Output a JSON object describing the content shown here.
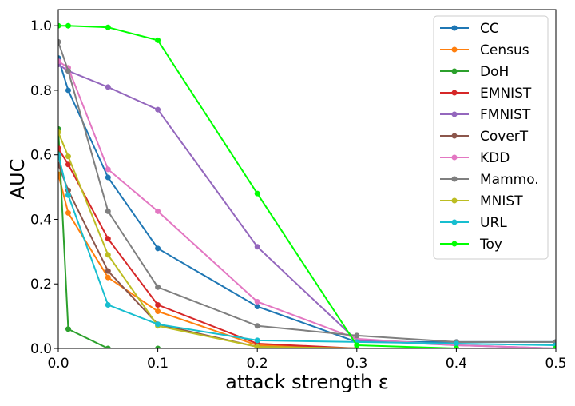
{
  "chart_data": {
    "type": "line",
    "title": "",
    "xlabel": "attack strength ε",
    "ylabel": "AUC",
    "xlim": [
      0.0,
      0.5
    ],
    "ylim": [
      0.0,
      1.05
    ],
    "x_ticks": [
      0.0,
      0.1,
      0.2,
      0.3,
      0.4,
      0.5
    ],
    "x_tick_labels": [
      "0.0",
      "0.1",
      "0.2",
      "0.3",
      "0.4",
      "0.5"
    ],
    "y_ticks": [
      0.0,
      0.2,
      0.4,
      0.6,
      0.8,
      1.0
    ],
    "y_tick_labels": [
      "0.0",
      "0.2",
      "0.4",
      "0.6",
      "0.8",
      "1.0"
    ],
    "grid": false,
    "legend_position": "top-right",
    "series": [
      {
        "name": "CC",
        "color": "#1f77b4",
        "x": [
          0,
          0.01,
          0.05,
          0.1,
          0.2,
          0.3,
          0.4,
          0.5
        ],
        "y": [
          0.9,
          0.8,
          0.53,
          0.31,
          0.13,
          0.02,
          0.02,
          0.02
        ]
      },
      {
        "name": "Census",
        "color": "#ff7f0e",
        "x": [
          0,
          0.01,
          0.05,
          0.1,
          0.2,
          0.3,
          0.4,
          0.5
        ],
        "y": [
          0.54,
          0.42,
          0.22,
          0.115,
          0.01,
          0.0,
          0.0,
          0.0
        ]
      },
      {
        "name": "DoH",
        "color": "#2ca02c",
        "x": [
          0,
          0.01,
          0.05,
          0.1,
          0.2,
          0.3,
          0.4,
          0.5
        ],
        "y": [
          0.68,
          0.06,
          0.0,
          0.0,
          0.0,
          0.0,
          0.0,
          0.0
        ]
      },
      {
        "name": "EMNIST",
        "color": "#d62728",
        "x": [
          0,
          0.01,
          0.05,
          0.1,
          0.2,
          0.3,
          0.4,
          0.5
        ],
        "y": [
          0.62,
          0.57,
          0.34,
          0.135,
          0.015,
          0.0,
          0.0,
          0.0
        ]
      },
      {
        "name": "FMNIST",
        "color": "#9467bd",
        "x": [
          0,
          0.01,
          0.05,
          0.1,
          0.2,
          0.3,
          0.4,
          0.5
        ],
        "y": [
          0.88,
          0.86,
          0.81,
          0.74,
          0.315,
          0.025,
          0.01,
          0.0
        ]
      },
      {
        "name": "CoverT",
        "color": "#8c564b",
        "x": [
          0,
          0.01,
          0.05,
          0.1,
          0.2,
          0.3,
          0.4,
          0.5
        ],
        "y": [
          0.57,
          0.49,
          0.24,
          0.075,
          0.005,
          0.0,
          0.0,
          0.0
        ]
      },
      {
        "name": "KDD",
        "color": "#e377c2",
        "x": [
          0,
          0.01,
          0.05,
          0.1,
          0.2,
          0.3,
          0.4,
          0.5
        ],
        "y": [
          0.89,
          0.87,
          0.555,
          0.425,
          0.145,
          0.03,
          0.01,
          0.0
        ]
      },
      {
        "name": "Mammo.",
        "color": "#7f7f7f",
        "x": [
          0,
          0.01,
          0.05,
          0.1,
          0.2,
          0.3,
          0.4,
          0.5
        ],
        "y": [
          0.95,
          0.86,
          0.425,
          0.19,
          0.07,
          0.04,
          0.02,
          0.02
        ]
      },
      {
        "name": "MNIST",
        "color": "#bcbd22",
        "x": [
          0,
          0.01,
          0.05,
          0.1,
          0.2,
          0.3,
          0.4,
          0.5
        ],
        "y": [
          0.67,
          0.595,
          0.29,
          0.07,
          0.005,
          0.0,
          0.0,
          0.0
        ]
      },
      {
        "name": "URL",
        "color": "#17becf",
        "x": [
          0,
          0.01,
          0.05,
          0.1,
          0.2,
          0.3,
          0.4,
          0.5
        ],
        "y": [
          0.6,
          0.475,
          0.135,
          0.075,
          0.025,
          0.02,
          0.015,
          0.01
        ]
      },
      {
        "name": "Toy",
        "color": "#00ff00",
        "x": [
          0,
          0.01,
          0.05,
          0.1,
          0.2,
          0.3,
          0.4,
          0.5
        ],
        "y": [
          1.0,
          1.0,
          0.995,
          0.955,
          0.48,
          0.01,
          0.0,
          0.0
        ]
      }
    ]
  }
}
